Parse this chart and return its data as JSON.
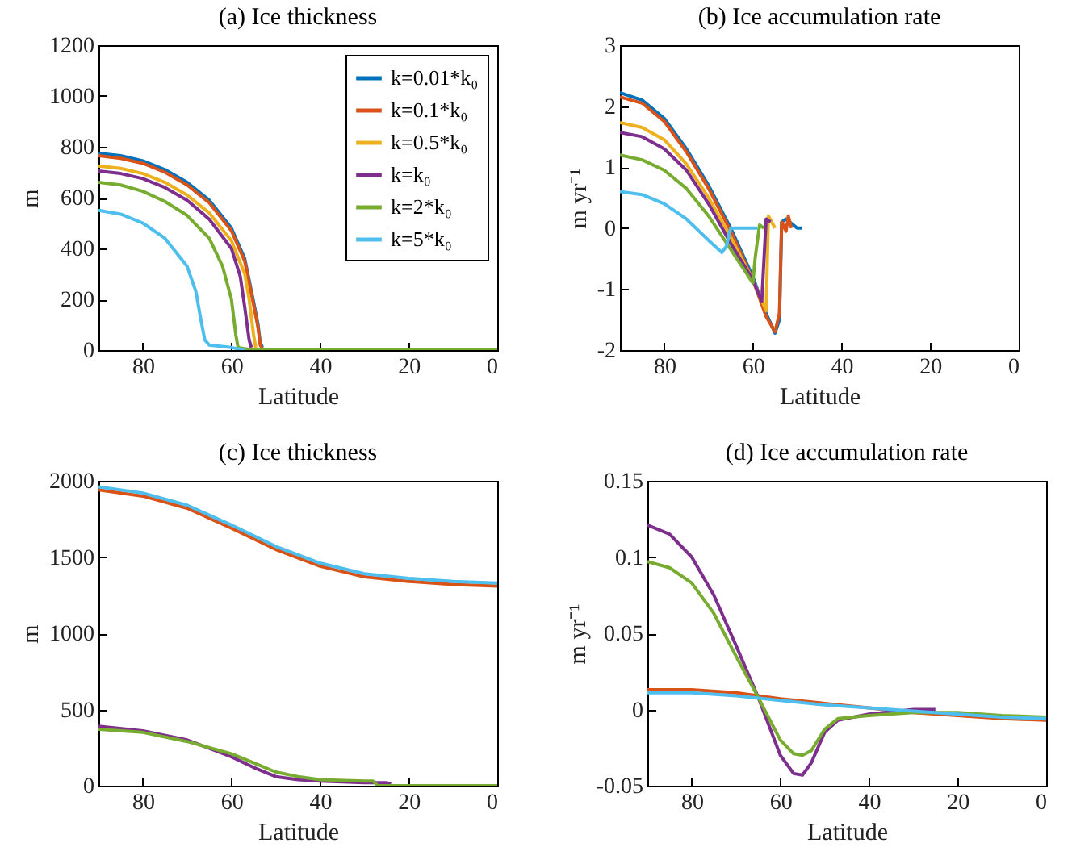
{
  "chart_data": [
    {
      "type": "line",
      "title": "(a) Ice thickness",
      "xlabel": "Latitude",
      "ylabel": "m",
      "xlim": [
        90,
        0
      ],
      "xticks": [
        80,
        60,
        40,
        20,
        0
      ],
      "ylim": [
        0,
        1200
      ],
      "yticks": [
        0,
        200,
        400,
        600,
        800,
        1000,
        1200
      ],
      "legend": "top right",
      "series": [
        {
          "name": "k=0.01*k₀",
          "color": "#0072bd",
          "x": [
            90,
            85,
            80,
            75,
            70,
            65,
            60,
            57,
            55,
            54,
            53.5,
            53
          ],
          "values": [
            775,
            765,
            745,
            710,
            660,
            590,
            480,
            360,
            190,
            100,
            30,
            10
          ]
        },
        {
          "name": "k=0.1*k₀",
          "color": "#d95319",
          "x": [
            90,
            85,
            80,
            75,
            70,
            65,
            60,
            57,
            55,
            54,
            53.5,
            53
          ],
          "values": [
            765,
            755,
            735,
            700,
            650,
            580,
            470,
            350,
            180,
            90,
            20,
            5
          ]
        },
        {
          "name": "k=0.5*k₀",
          "color": "#edb120",
          "x": [
            90,
            85,
            80,
            75,
            70,
            65,
            60,
            57,
            56,
            55,
            54.5
          ],
          "values": [
            725,
            715,
            695,
            660,
            610,
            540,
            430,
            300,
            200,
            60,
            10
          ]
        },
        {
          "name": "k=k₀",
          "color": "#7e2f8e",
          "x": [
            90,
            85,
            80,
            75,
            70,
            65,
            60,
            58,
            57,
            56,
            55.5
          ],
          "values": [
            705,
            695,
            675,
            640,
            590,
            515,
            400,
            290,
            170,
            40,
            10
          ]
        },
        {
          "name": "k=2*k₀",
          "color": "#77ac30",
          "x": [
            90,
            85,
            80,
            75,
            70,
            65,
            62,
            60,
            59,
            58.5,
            55,
            40,
            20,
            0
          ],
          "values": [
            660,
            650,
            625,
            585,
            530,
            440,
            330,
            200,
            60,
            10,
            0,
            0,
            0,
            0
          ]
        },
        {
          "name": "k=5*k₀",
          "color": "#4dbeee",
          "x": [
            90,
            85,
            80,
            75,
            70,
            68,
            67,
            66,
            65,
            60,
            57
          ],
          "values": [
            550,
            535,
            500,
            440,
            330,
            230,
            130,
            40,
            20,
            10,
            0
          ]
        }
      ]
    },
    {
      "type": "line",
      "title": "(b) Ice accumulation rate",
      "xlabel": "Latitude",
      "ylabel": "m yr⁻¹",
      "xlim": [
        90,
        0
      ],
      "xticks": [
        80,
        60,
        40,
        20,
        0
      ],
      "ylim": [
        -2,
        3
      ],
      "yticks": [
        -2,
        -1,
        0,
        1,
        2,
        3
      ],
      "series": [
        {
          "color": "#0072bd",
          "x": [
            90,
            85,
            80,
            75,
            70,
            65,
            60,
            57,
            55,
            54,
            53.5,
            52.5,
            50,
            49
          ],
          "values": [
            2.22,
            2.1,
            1.8,
            1.3,
            0.7,
            0.0,
            -0.8,
            -1.4,
            -1.72,
            -1.5,
            0.1,
            0.15,
            0,
            0
          ]
        },
        {
          "color": "#d95319",
          "x": [
            90,
            85,
            80,
            75,
            70,
            65,
            60,
            57,
            55,
            54,
            53.5,
            52.5,
            52,
            51.3
          ],
          "values": [
            2.15,
            2.05,
            1.75,
            1.25,
            0.65,
            -0.05,
            -0.85,
            -1.45,
            -1.7,
            -1.4,
            0.1,
            -0.05,
            0.2,
            0
          ]
        },
        {
          "color": "#edb120",
          "x": [
            90,
            85,
            80,
            75,
            70,
            65,
            60,
            57,
            56.5,
            55
          ],
          "values": [
            1.73,
            1.65,
            1.45,
            1.05,
            0.5,
            -0.15,
            -0.85,
            -1.35,
            0.2,
            0
          ]
        },
        {
          "color": "#7e2f8e",
          "x": [
            90,
            85,
            80,
            75,
            70,
            65,
            60,
            58,
            57,
            56
          ],
          "values": [
            1.57,
            1.5,
            1.3,
            0.95,
            0.4,
            -0.25,
            -0.85,
            -1.2,
            0.15,
            0.1
          ]
        },
        {
          "color": "#77ac30",
          "x": [
            90,
            85,
            80,
            75,
            70,
            65,
            60,
            59.5,
            58.5,
            57.5
          ],
          "values": [
            1.2,
            1.12,
            0.95,
            0.65,
            0.2,
            -0.35,
            -0.9,
            -0.5,
            0.05,
            0
          ]
        },
        {
          "color": "#4dbeee",
          "x": [
            90,
            85,
            80,
            75,
            70,
            67,
            66,
            65,
            62,
            59
          ],
          "values": [
            0.6,
            0.55,
            0.4,
            0.15,
            -0.2,
            -0.4,
            -0.3,
            0,
            0,
            0
          ]
        }
      ]
    },
    {
      "type": "line",
      "title": "(c) Ice thickness",
      "xlabel": "Latitude",
      "ylabel": "m",
      "xlim": [
        90,
        0
      ],
      "xticks": [
        80,
        60,
        40,
        20,
        0
      ],
      "ylim": [
        0,
        2000
      ],
      "yticks": [
        0,
        500,
        1000,
        1500,
        2000
      ],
      "series": [
        {
          "color": "#d95319",
          "x": [
            90,
            80,
            70,
            60,
            50,
            40,
            30,
            20,
            10,
            0
          ],
          "values": [
            1940,
            1900,
            1820,
            1690,
            1550,
            1440,
            1370,
            1340,
            1320,
            1310
          ]
        },
        {
          "color": "#7e2f8e",
          "x": [
            90,
            80,
            70,
            60,
            55,
            50,
            45,
            40,
            30,
            25,
            24
          ],
          "values": [
            390,
            360,
            300,
            190,
            120,
            60,
            40,
            30,
            20,
            20,
            10
          ]
        },
        {
          "color": "#77ac30",
          "x": [
            90,
            80,
            70,
            60,
            55,
            50,
            45,
            40,
            30,
            28,
            27,
            10,
            0
          ],
          "values": [
            370,
            350,
            290,
            210,
            150,
            90,
            60,
            40,
            30,
            30,
            0,
            0,
            0
          ]
        },
        {
          "color": "#4dbeee",
          "x": [
            90,
            80,
            70,
            60,
            50,
            40,
            30,
            20,
            10,
            0
          ],
          "values": [
            1960,
            1920,
            1840,
            1710,
            1570,
            1460,
            1390,
            1360,
            1340,
            1330
          ]
        }
      ]
    },
    {
      "type": "line",
      "title": "(d) Ice accumulation rate",
      "xlabel": "Latitude",
      "ylabel": "m yr⁻¹",
      "xlim": [
        90,
        0
      ],
      "xticks": [
        80,
        60,
        40,
        20,
        0
      ],
      "ylim": [
        -0.05,
        0.15
      ],
      "yticks": [
        -0.05,
        0,
        0.05,
        0.1,
        0.15
      ],
      "series": [
        {
          "color": "#d95319",
          "x": [
            90,
            80,
            70,
            60,
            50,
            40,
            30,
            20,
            10,
            0
          ],
          "values": [
            0.013,
            0.013,
            0.011,
            0.007,
            0.004,
            0.001,
            -0.002,
            -0.004,
            -0.006,
            -0.007
          ]
        },
        {
          "color": "#7e2f8e",
          "x": [
            90,
            85,
            80,
            75,
            70,
            65,
            60,
            57,
            55,
            53,
            50,
            47,
            40,
            30,
            25
          ],
          "values": [
            0.121,
            0.115,
            0.1,
            0.075,
            0.042,
            0.008,
            -0.03,
            -0.042,
            -0.043,
            -0.035,
            -0.015,
            -0.007,
            -0.003,
            0,
            0
          ]
        },
        {
          "color": "#77ac30",
          "x": [
            90,
            85,
            80,
            75,
            70,
            65,
            60,
            57,
            55,
            53,
            50,
            47,
            40,
            30,
            20,
            10,
            0
          ],
          "values": [
            0.097,
            0.093,
            0.083,
            0.063,
            0.035,
            0.008,
            -0.02,
            -0.029,
            -0.03,
            -0.027,
            -0.013,
            -0.006,
            -0.004,
            -0.002,
            -0.002,
            -0.004,
            -0.005
          ]
        },
        {
          "color": "#4dbeee",
          "x": [
            90,
            80,
            70,
            60,
            50,
            40,
            30,
            20,
            10,
            0
          ],
          "values": [
            0.011,
            0.011,
            0.009,
            0.006,
            0.003,
            0.001,
            -0.001,
            -0.003,
            -0.005,
            -0.006
          ]
        }
      ]
    }
  ]
}
